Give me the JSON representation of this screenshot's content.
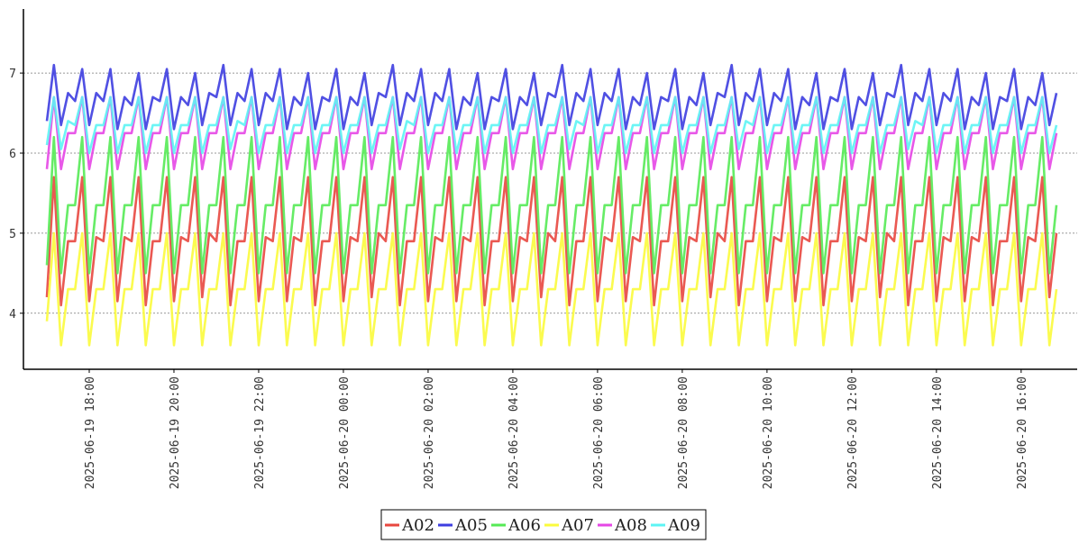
{
  "chart_data": {
    "type": "line",
    "title": "",
    "xlabel": "",
    "ylabel": "",
    "x_range": [
      "2025-06-19 17:00",
      "2025-06-20 16:50"
    ],
    "ylim": [
      3.3,
      7.8
    ],
    "grid": "horizontal-dotted",
    "legend_position": "bottom-center",
    "y_ticks": [
      "4",
      "5",
      "6",
      "7"
    ],
    "x_ticks": [
      "2025-06-19 18:00",
      "2025-06-19 20:00",
      "2025-06-19 22:00",
      "2025-06-20 00:00",
      "2025-06-20 02:00",
      "2025-06-20 04:00",
      "2025-06-20 06:00",
      "2025-06-20 08:00",
      "2025-06-20 10:00",
      "2025-06-20 12:00",
      "2025-06-20 14:00",
      "2025-06-20 16:00"
    ],
    "sampling": "every 10 minutes, cyclic pattern with period 20 minutes",
    "series": [
      {
        "name": "A02",
        "color": "#e8473f",
        "values": [
          4.2,
          5.7,
          4.1,
          5.7,
          4.2,
          5.7,
          4.2,
          5.7,
          4.1,
          5.7,
          4.2,
          5.7,
          4.3
        ]
      },
      {
        "name": "A05",
        "color": "#3d3de0",
        "values": [
          6.4,
          7.1,
          6.4,
          7.0,
          6.4,
          7.0,
          6.3,
          6.9,
          6.3,
          7.0,
          6.3,
          6.9,
          6.4
        ]
      },
      {
        "name": "A06",
        "color": "#55ea55",
        "values": [
          4.6,
          6.2,
          4.5,
          6.2,
          4.5,
          6.2,
          4.5,
          6.2,
          4.5,
          6.2,
          4.5,
          6.2,
          4.5
        ]
      },
      {
        "name": "A07",
        "color": "#fbfb3c",
        "values": [
          3.9,
          5.0,
          3.6,
          5.0,
          3.6,
          5.0,
          3.6,
          5.0,
          3.6,
          5.0,
          3.6,
          5.0,
          3.6
        ]
      },
      {
        "name": "A08",
        "color": "#e546e5",
        "values": [
          5.8,
          6.7,
          5.8,
          6.7,
          5.8,
          6.7,
          5.8,
          6.7,
          5.8,
          6.7,
          5.8,
          6.7,
          5.8
        ]
      },
      {
        "name": "A09",
        "color": "#5cf4f4",
        "values": [
          6.1,
          6.7,
          6.1,
          6.7,
          6.0,
          6.7,
          6.0,
          6.7,
          6.0,
          6.7,
          6.0,
          6.7,
          6.0
        ]
      }
    ]
  }
}
